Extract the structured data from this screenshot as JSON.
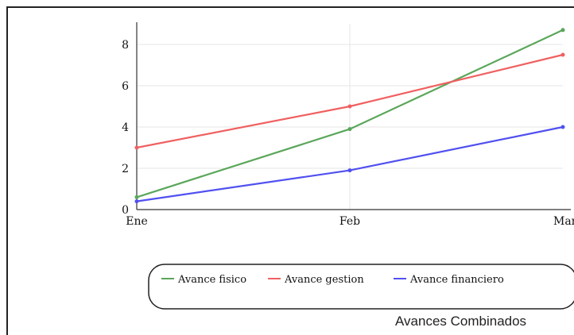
{
  "chart_data": {
    "type": "line",
    "title": "Avances Combinados",
    "categories": [
      "Ene",
      "Feb",
      "Mar"
    ],
    "ylim": [
      0,
      9
    ],
    "yticks": [
      0,
      2,
      4,
      6,
      8
    ],
    "grid": true,
    "legend_position": "bottom",
    "series": [
      {
        "name": "Avance fisico",
        "color": "#5aa65a",
        "values": [
          0.6,
          3.9,
          8.7
        ]
      },
      {
        "name": "Avance gestion",
        "color": "#f06060",
        "values": [
          3.0,
          5.0,
          7.5
        ]
      },
      {
        "name": "Avance financiero",
        "color": "#5050f0",
        "values": [
          0.4,
          1.9,
          4.0
        ]
      }
    ]
  }
}
